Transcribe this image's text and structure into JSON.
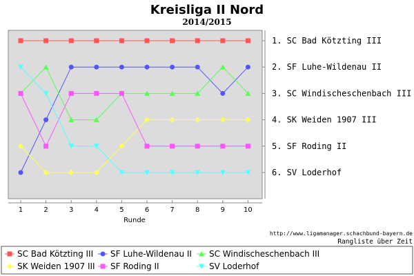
{
  "chart_data": {
    "type": "line",
    "title": "Kreisliga II Nord",
    "subtitle": "2014/2015",
    "xlabel": "Runde",
    "ylabel": "",
    "x": [
      1,
      2,
      3,
      4,
      5,
      6,
      7,
      8,
      9,
      10
    ],
    "ylim": [
      1,
      6
    ],
    "y_inverted": true,
    "grid": false,
    "legend_position": "bottom",
    "right_labels": [
      "1. SC Bad Kötzting III",
      "2. SF Luhe-Wildenau II",
      "3. SC Windischeschenbach III",
      "4. SK Weiden 1907 III",
      "5. SF Roding II",
      "6. SV Loderhof"
    ],
    "series": [
      {
        "name": "SC Bad Kötzting III",
        "color": "#ff5555",
        "marker": "square",
        "values": [
          1,
          1,
          1,
          1,
          1,
          1,
          1,
          1,
          1,
          1
        ]
      },
      {
        "name": "SF Luhe-Wildenau II",
        "color": "#5555ff",
        "marker": "circle",
        "values": [
          6,
          4,
          2,
          2,
          2,
          2,
          2,
          2,
          3,
          2
        ]
      },
      {
        "name": "SC Windischeschenbach III",
        "color": "#55ff55",
        "marker": "triangle-up",
        "values": [
          3,
          2,
          4,
          4,
          3,
          3,
          3,
          3,
          2,
          3
        ]
      },
      {
        "name": "SK Weiden 1907 III",
        "color": "#ffff55",
        "marker": "diamond",
        "values": [
          5,
          6,
          6,
          6,
          5,
          4,
          4,
          4,
          4,
          4
        ]
      },
      {
        "name": "SF Roding II",
        "color": "#ff55ff",
        "marker": "square",
        "values": [
          3,
          5,
          3,
          3,
          3,
          5,
          5,
          5,
          5,
          5
        ]
      },
      {
        "name": "SV Loderhof",
        "color": "#55ffff",
        "marker": "triangle-down",
        "values": [
          2,
          3,
          5,
          5,
          6,
          6,
          6,
          6,
          6,
          6
        ]
      }
    ],
    "source": "http://www.ligamanager.schachbund-bayern.de",
    "note": "Rangliste über Zeit"
  }
}
